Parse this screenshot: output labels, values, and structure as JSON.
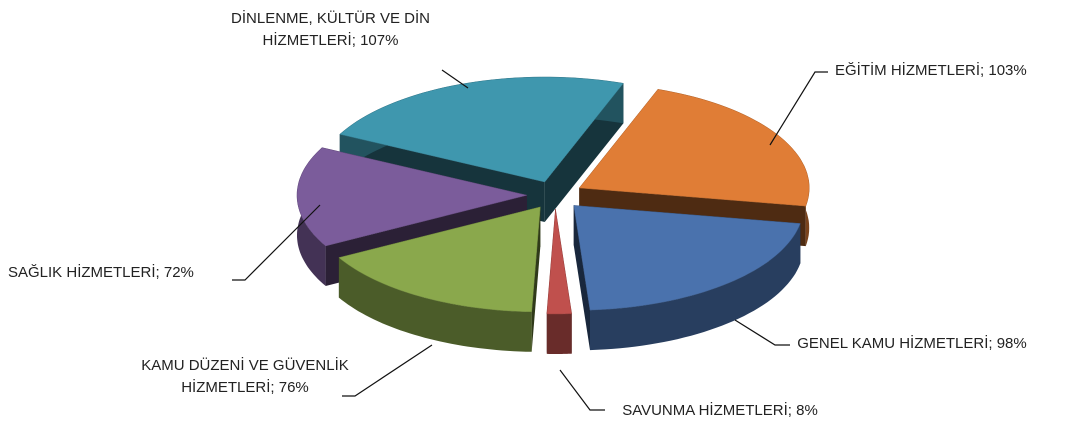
{
  "chart_data": {
    "type": "pie3d",
    "categories": [
      "EĞİTİM HİZMETLERİ;",
      "GENEL KAMU HİZMETLERİ;",
      "SAVUNMA HİZMETLERİ;",
      "KAMU DÜZENİ VE GÜVENLİK HİZMETLERİ;",
      "SAĞLIK HİZMETLERİ;",
      "DİNLENME, KÜLTÜR VE DİN HİZMETLERİ;"
    ],
    "values": [
      103,
      98,
      8,
      76,
      72,
      107
    ],
    "value_labels": [
      "103%",
      "98%",
      "8%",
      "76%",
      "72%",
      "107%"
    ],
    "colors": [
      "#e07d36",
      "#4a72ad",
      "#c0504d",
      "#8aa84c",
      "#7b5c9b",
      "#3f97ae"
    ]
  }
}
